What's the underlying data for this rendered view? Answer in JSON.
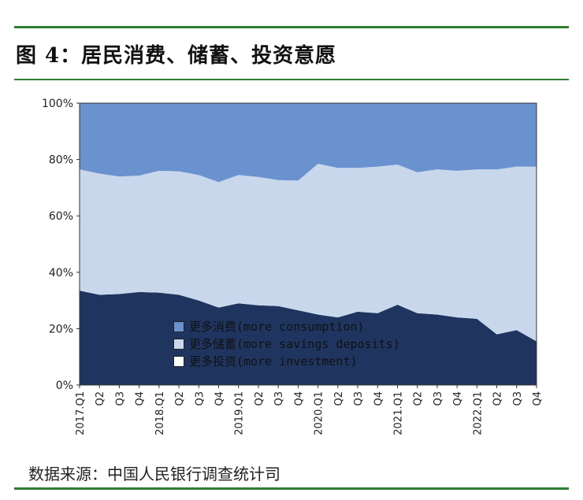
{
  "title": "图 4：居民消费、储蓄、投资意愿",
  "source": "数据来源：中国人民银行调查统计司",
  "colors": {
    "rule": "#2e7d32",
    "consumption": "#6a92cf",
    "savings": "#c9d7ec",
    "investment": "#1f3560"
  },
  "chart_data": {
    "type": "area",
    "stacked": true,
    "ylim": [
      0,
      100
    ],
    "yticks": [
      "0%",
      "20%",
      "40%",
      "60%",
      "80%",
      "100%"
    ],
    "x": [
      "2017.Q1",
      "Q2",
      "Q3",
      "Q4",
      "2018.Q1",
      "Q2",
      "Q3",
      "Q4",
      "2019.Q1",
      "Q2",
      "Q3",
      "Q4",
      "2020.Q1",
      "Q2",
      "Q3",
      "Q4",
      "2021.Q1",
      "Q2",
      "Q3",
      "Q4",
      "2022.Q1",
      "Q2",
      "Q3",
      "Q4"
    ],
    "series": [
      {
        "name": "更多投资(more investment)",
        "color": "#1f3560",
        "values": [
          33.5,
          32,
          32.3,
          33,
          32.8,
          32,
          30,
          27.5,
          29,
          28.3,
          28,
          26.5,
          25,
          24,
          26,
          25.5,
          28.5,
          25.5,
          25,
          24,
          23.5,
          18,
          19.5,
          15.5
        ]
      },
      {
        "name": "更多储蓄(more savings deposits)",
        "color": "#c9d7ec",
        "values": [
          43,
          43,
          41.7,
          41.3,
          43.2,
          43.8,
          44.5,
          44.5,
          45.5,
          45.5,
          44.7,
          46,
          53.5,
          53,
          51,
          52,
          49.7,
          50,
          51.5,
          52,
          53,
          58.5,
          58,
          62
        ]
      },
      {
        "name": "更多消费(more consumption)",
        "color": "#6a92cf",
        "values": [
          23.5,
          25,
          26,
          25.7,
          24,
          24.2,
          25.5,
          28,
          25.5,
          26.2,
          27.3,
          27.5,
          21.5,
          23,
          23,
          22.5,
          21.8,
          24.5,
          23.5,
          24,
          23.5,
          23.5,
          22.5,
          22.5
        ]
      }
    ],
    "legend_position": "bottom-left-inside",
    "grid": false
  }
}
